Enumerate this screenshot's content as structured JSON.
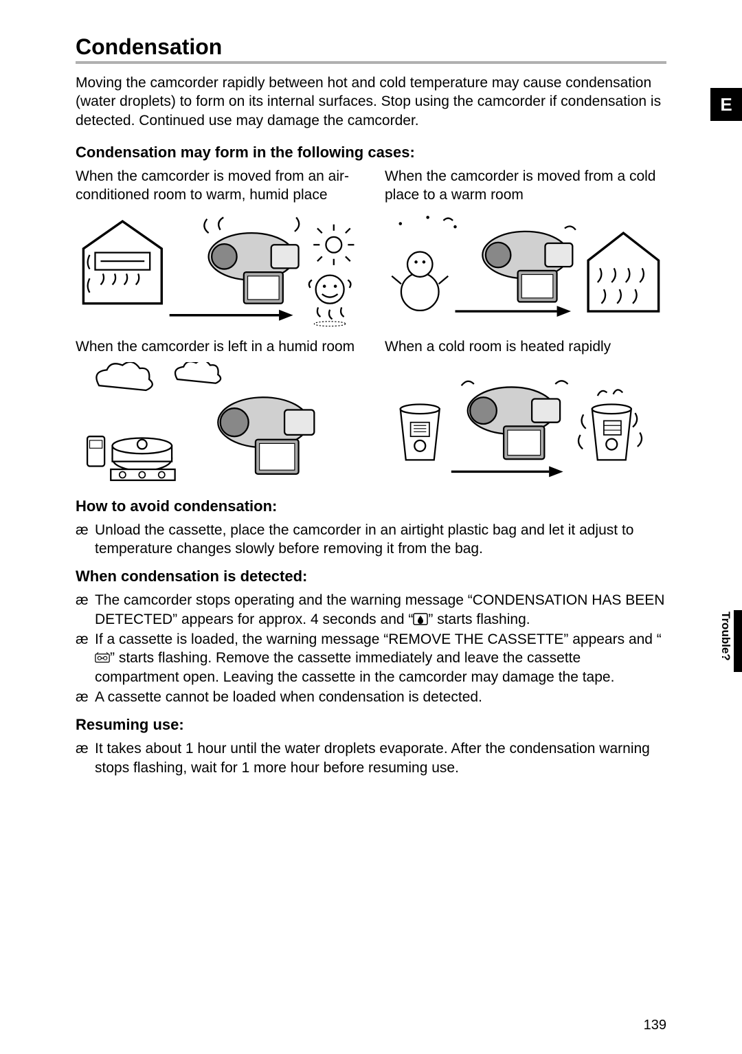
{
  "side_tab": "E",
  "side_label": "Trouble?",
  "title": "Condensation",
  "intro": "Moving the camcorder rapidly between hot and cold temperature may cause condensation (water droplets) to form on its internal surfaces. Stop using the camcorder if condensation is detected. Continued use may damage the camcorder.",
  "cases_heading": "Condensation may form in the following cases:",
  "cases": [
    {
      "text": "When the camcorder is moved from an air-conditioned room to warm, humid place"
    },
    {
      "text": "When the camcorder is moved from a cold place to a warm room"
    },
    {
      "text": "When the camcorder is left in a humid room"
    },
    {
      "text": "When a cold room is heated rapidly"
    }
  ],
  "avoid_heading": "How to avoid condensation:",
  "avoid_bullets": [
    "Unload the cassette, place the camcorder in an airtight plastic bag and let it adjust to temperature changes slowly before removing it from the bag."
  ],
  "detected_heading": "When condensation is detected:",
  "detected_bullets": [
    {
      "pre": "The camcorder stops operating and the warning message “CONDENSATION HAS BEEN DETECTED” appears for approx. 4 seconds and “",
      "icon": "droplet",
      "post": "” starts flashing."
    },
    {
      "pre": "If a cassette is loaded, the warning message “REMOVE THE CASSETTE” appears and “",
      "icon": "cassette",
      "post": "” starts flashing. Remove the cassette immediately and leave the cassette compartment open. Leaving the cassette in the camcorder may damage the tape."
    },
    {
      "pre": "A cassette cannot be loaded when condensation is detected.",
      "icon": null,
      "post": ""
    }
  ],
  "resume_heading": "Resuming use:",
  "resume_bullets": [
    "It takes about 1 hour until the water droplets evaporate. After the condensation warning stops flashing, wait for 1 more hour before resuming use."
  ],
  "page_number": "139",
  "bullet_mark": "æ",
  "colors": {
    "rule": "#b0b0b0",
    "text": "#000000",
    "bg": "#ffffff"
  }
}
